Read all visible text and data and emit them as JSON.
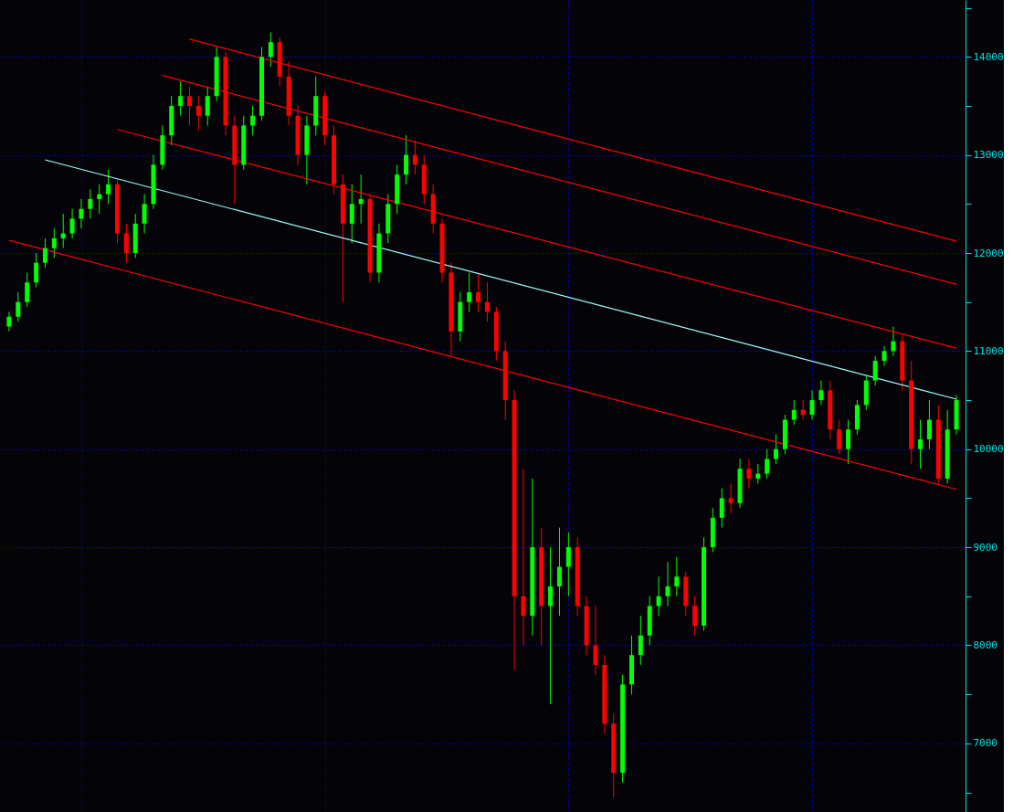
{
  "chart_data": {
    "type": "candlestick",
    "categories": [
      null,
      null,
      null,
      null,
      null,
      null,
      null,
      null,
      null,
      null,
      null,
      null,
      null,
      null,
      null,
      null,
      null,
      null,
      null,
      null,
      null,
      null,
      null,
      null,
      null,
      null,
      null,
      null,
      null,
      null,
      null,
      null,
      null,
      null,
      null,
      null,
      null,
      null,
      null,
      null,
      null,
      null,
      null,
      null,
      null,
      null,
      null,
      null,
      null,
      null,
      null,
      null,
      null,
      null,
      null,
      null,
      null,
      null,
      null,
      null,
      null,
      null,
      null,
      null,
      null,
      null,
      null,
      null,
      null,
      null,
      null,
      null,
      null,
      null,
      null,
      null,
      null,
      null,
      null,
      null,
      null,
      null,
      null,
      null,
      null,
      null,
      null,
      null,
      null,
      null,
      null,
      null,
      null,
      null,
      null,
      null,
      null,
      null,
      null,
      null,
      null,
      null,
      null,
      null,
      null,
      null
    ],
    "ohlc": [
      [
        11250,
        11400,
        11200,
        11350
      ],
      [
        11350,
        11600,
        11300,
        11500
      ],
      [
        11500,
        11800,
        11450,
        11700
      ],
      [
        11700,
        12000,
        11650,
        11900
      ],
      [
        11900,
        12150,
        11850,
        12050
      ],
      [
        12050,
        12250,
        11950,
        12150
      ],
      [
        12150,
        12400,
        12050,
        12200
      ],
      [
        12200,
        12450,
        12150,
        12350
      ],
      [
        12350,
        12550,
        12250,
        12450
      ],
      [
        12450,
        12650,
        12350,
        12550
      ],
      [
        12550,
        12700,
        12400,
        12600
      ],
      [
        12600,
        12850,
        12500,
        12700
      ],
      [
        12700,
        12750,
        12100,
        12200
      ],
      [
        12200,
        12300,
        11900,
        12000
      ],
      [
        12000,
        12400,
        11950,
        12300
      ],
      [
        12300,
        12600,
        12200,
        12500
      ],
      [
        12500,
        13000,
        12450,
        12900
      ],
      [
        12900,
        13300,
        12850,
        13200
      ],
      [
        13200,
        13600,
        13100,
        13500
      ],
      [
        13500,
        13750,
        13400,
        13600
      ],
      [
        13600,
        13700,
        13300,
        13500
      ],
      [
        13500,
        13600,
        13250,
        13400
      ],
      [
        13400,
        13700,
        13300,
        13600
      ],
      [
        13600,
        14100,
        13550,
        14000
      ],
      [
        14000,
        14050,
        13200,
        13300
      ],
      [
        13300,
        13400,
        12500,
        12900
      ],
      [
        12900,
        13400,
        12850,
        13300
      ],
      [
        13300,
        13500,
        13200,
        13400
      ],
      [
        13400,
        14100,
        13350,
        14000
      ],
      [
        14000,
        14250,
        13900,
        14150
      ],
      [
        14150,
        14200,
        13700,
        13800
      ],
      [
        13800,
        13950,
        13300,
        13400
      ],
      [
        13400,
        13500,
        12900,
        13000
      ],
      [
        13000,
        13400,
        12700,
        13300
      ],
      [
        13300,
        13800,
        13200,
        13600
      ],
      [
        13600,
        13650,
        13100,
        13200
      ],
      [
        13200,
        13300,
        12600,
        12700
      ],
      [
        12700,
        12800,
        11500,
        12300
      ],
      [
        12300,
        12700,
        12100,
        12500
      ],
      [
        12500,
        12800,
        12300,
        12550
      ],
      [
        12550,
        12600,
        11700,
        11800
      ],
      [
        11800,
        12300,
        11700,
        12200
      ],
      [
        12200,
        12600,
        12100,
        12500
      ],
      [
        12500,
        12900,
        12400,
        12800
      ],
      [
        12800,
        13200,
        12700,
        13000
      ],
      [
        13000,
        13150,
        12800,
        12900
      ],
      [
        12900,
        13000,
        12500,
        12600
      ],
      [
        12600,
        12700,
        12200,
        12300
      ],
      [
        12300,
        12350,
        11700,
        11800
      ],
      [
        11800,
        11900,
        10950,
        11200
      ],
      [
        11200,
        11600,
        11100,
        11500
      ],
      [
        11500,
        11800,
        11400,
        11600
      ],
      [
        11600,
        11800,
        11400,
        11500
      ],
      [
        11500,
        11700,
        11300,
        11400
      ],
      [
        11400,
        11450,
        10900,
        11000
      ],
      [
        11000,
        11100,
        10300,
        10500
      ],
      [
        10500,
        10600,
        7750,
        8500
      ],
      [
        8500,
        9800,
        8000,
        8300
      ],
      [
        8300,
        9700,
        8100,
        9000
      ],
      [
        9000,
        9200,
        8000,
        8400
      ],
      [
        8400,
        9000,
        7400,
        8600
      ],
      [
        8600,
        9200,
        8300,
        8800
      ],
      [
        8800,
        9150,
        8500,
        9000
      ],
      [
        9000,
        9100,
        8300,
        8400
      ],
      [
        8400,
        8500,
        7900,
        8000
      ],
      [
        8000,
        8400,
        7700,
        7800
      ],
      [
        7800,
        7900,
        7100,
        7200
      ],
      [
        7200,
        7300,
        6450,
        6700
      ],
      [
        6700,
        7700,
        6600,
        7600
      ],
      [
        7600,
        8100,
        7500,
        7900
      ],
      [
        7900,
        8300,
        7800,
        8100
      ],
      [
        8100,
        8500,
        8000,
        8400
      ],
      [
        8400,
        8700,
        8300,
        8500
      ],
      [
        8500,
        8850,
        8400,
        8600
      ],
      [
        8600,
        8900,
        8500,
        8700
      ],
      [
        8700,
        8750,
        8300,
        8400
      ],
      [
        8400,
        8500,
        8100,
        8200
      ],
      [
        8200,
        9100,
        8150,
        9000
      ],
      [
        9000,
        9400,
        8950,
        9300
      ],
      [
        9300,
        9600,
        9200,
        9500
      ],
      [
        9500,
        9650,
        9350,
        9450
      ],
      [
        9450,
        9900,
        9400,
        9800
      ],
      [
        9800,
        9900,
        9600,
        9700
      ],
      [
        9700,
        9850,
        9650,
        9750
      ],
      [
        9750,
        10000,
        9700,
        9900
      ],
      [
        9900,
        10150,
        9850,
        10000
      ],
      [
        10000,
        10350,
        9950,
        10300
      ],
      [
        10300,
        10500,
        10250,
        10400
      ],
      [
        10400,
        10500,
        10300,
        10350
      ],
      [
        10350,
        10600,
        10300,
        10500
      ],
      [
        10500,
        10700,
        10450,
        10600
      ],
      [
        10600,
        10700,
        10100,
        10200
      ],
      [
        10200,
        10300,
        9950,
        10000
      ],
      [
        10000,
        10300,
        9850,
        10200
      ],
      [
        10200,
        10500,
        10150,
        10450
      ],
      [
        10450,
        10750,
        10400,
        10700
      ],
      [
        10700,
        10950,
        10650,
        10900
      ],
      [
        10900,
        11050,
        10850,
        11000
      ],
      [
        11000,
        11250,
        10950,
        11100
      ],
      [
        11100,
        11150,
        10600,
        10700
      ],
      [
        10700,
        10900,
        9850,
        10000
      ],
      [
        10000,
        10300,
        9800,
        10100
      ],
      [
        10100,
        10500,
        10000,
        10300
      ],
      [
        10300,
        10450,
        9650,
        9700
      ],
      [
        9700,
        10400,
        9650,
        10200
      ],
      [
        10200,
        10550,
        10150,
        10500
      ]
    ],
    "colors": [
      "#00ff00",
      "#00ff00",
      "#00ff00",
      "#00ff00",
      "#00ff00",
      "#00ff00",
      "#00ff00",
      "#00ff00",
      "#00ff00",
      "#00ff00",
      "#00ff00",
      "#00ff00",
      "#ff0000",
      "#ff0000",
      "#00ff00",
      "#00ff00",
      "#00ff00",
      "#00ff00",
      "#00ff00",
      "#00ff00",
      "#ff0000",
      "#ff0000",
      "#00ff00",
      "#00ff00",
      "#ff0000",
      "#ff0000",
      "#00ff00",
      "#00ff00",
      "#00ff00",
      "#00ff00",
      "#ff0000",
      "#ff0000",
      "#ff0000",
      "#00ff00",
      "#00ff00",
      "#ff0000",
      "#ff0000",
      "#ff0000",
      "#00ff00",
      "#00ff00",
      "#ff0000",
      "#00ff00",
      "#00ff00",
      "#00ff00",
      "#00ff00",
      "#ff0000",
      "#ff0000",
      "#ff0000",
      "#ff0000",
      "#ff0000",
      "#00ff00",
      "#00ff00",
      "#ff0000",
      "#ff0000",
      "#ff0000",
      "#ff0000",
      "#ff0000",
      "#ff0000",
      "#00ff00",
      "#ff0000",
      "#00ff00",
      "#00ff00",
      "#00ff00",
      "#ff0000",
      "#ff0000",
      "#ff0000",
      "#ff0000",
      "#ff0000",
      "#00ff00",
      "#00ff00",
      "#00ff00",
      "#00ff00",
      "#00ff00",
      "#00ff00",
      "#00ff00",
      "#ff0000",
      "#ff0000",
      "#00ff00",
      "#00ff00",
      "#00ff00",
      "#ff0000",
      "#00ff00",
      "#ff0000",
      "#00ff00",
      "#00ff00",
      "#00ff00",
      "#00ff00",
      "#00ff00",
      "#ff0000",
      "#00ff00",
      "#00ff00",
      "#ff0000",
      "#ff0000",
      "#00ff00",
      "#00ff00",
      "#00ff00",
      "#00ff00",
      "#00ff00",
      "#00ff00",
      "#ff0000",
      "#ff0000",
      "#00ff00",
      "#00ff00",
      "#ff0000",
      "#00ff00",
      "#00ff00"
    ],
    "series": [
      {
        "type": "line",
        "color": "#a0ffff",
        "values": [
          null,
          null,
          null,
          null,
          12950,
          null,
          null,
          null,
          null,
          null,
          null,
          null,
          null,
          null,
          null,
          null,
          null,
          null,
          null,
          null,
          null,
          null,
          null,
          null,
          null,
          null,
          null,
          null,
          null,
          null,
          null,
          null,
          null,
          null,
          null,
          null,
          null,
          null,
          null,
          null,
          null,
          null,
          null,
          null,
          null,
          null,
          null,
          null,
          null,
          null,
          null,
          null,
          null,
          null,
          null,
          null,
          null,
          null,
          null,
          null,
          null,
          null,
          null,
          null,
          null,
          null,
          null,
          null,
          null,
          null,
          null,
          null,
          null,
          null,
          null,
          null,
          null,
          null,
          null,
          null,
          null,
          null,
          null,
          null,
          null,
          null,
          null,
          null,
          null,
          null,
          null,
          null,
          null,
          null,
          null,
          null,
          null,
          null,
          null,
          null,
          null,
          null,
          null,
          null,
          null,
          10510
        ]
      },
      {
        "type": "line",
        "color": "#ff0000",
        "values": [
          12130,
          null,
          null,
          null,
          null,
          null,
          null,
          null,
          null,
          null,
          null,
          null,
          null,
          null,
          null,
          null,
          null,
          null,
          null,
          null,
          null,
          null,
          null,
          null,
          null,
          null,
          null,
          null,
          null,
          null,
          null,
          null,
          null,
          null,
          null,
          null,
          null,
          null,
          null,
          null,
          null,
          null,
          null,
          null,
          null,
          null,
          null,
          null,
          null,
          null,
          null,
          null,
          null,
          null,
          null,
          null,
          null,
          null,
          null,
          null,
          null,
          null,
          null,
          null,
          null,
          null,
          null,
          null,
          null,
          null,
          null,
          null,
          null,
          null,
          null,
          null,
          null,
          null,
          null,
          null,
          null,
          null,
          null,
          null,
          null,
          null,
          null,
          null,
          null,
          null,
          null,
          null,
          null,
          null,
          null,
          null,
          null,
          null,
          null,
          null,
          null,
          null,
          null,
          null,
          null,
          9590
        ]
      },
      {
        "type": "line",
        "color": "#ff0000",
        "values": [
          null,
          null,
          null,
          null,
          null,
          null,
          null,
          null,
          null,
          null,
          null,
          null,
          13260,
          null,
          null,
          null,
          null,
          null,
          null,
          null,
          null,
          null,
          null,
          null,
          null,
          null,
          null,
          null,
          null,
          null,
          null,
          null,
          null,
          null,
          null,
          null,
          null,
          null,
          null,
          null,
          null,
          null,
          null,
          null,
          null,
          null,
          null,
          null,
          null,
          null,
          null,
          null,
          null,
          null,
          null,
          null,
          null,
          null,
          null,
          null,
          null,
          null,
          null,
          null,
          null,
          null,
          null,
          null,
          null,
          null,
          null,
          null,
          null,
          null,
          null,
          null,
          null,
          null,
          null,
          null,
          null,
          null,
          null,
          null,
          null,
          null,
          null,
          null,
          null,
          null,
          null,
          null,
          null,
          null,
          null,
          null,
          null,
          null,
          null,
          null,
          null,
          null,
          null,
          null,
          null,
          11030
        ]
      },
      {
        "type": "line",
        "color": "#ff0000",
        "values": [
          null,
          null,
          null,
          null,
          null,
          null,
          null,
          null,
          null,
          null,
          null,
          null,
          null,
          null,
          null,
          null,
          null,
          13810,
          null,
          null,
          null,
          null,
          null,
          null,
          null,
          null,
          null,
          null,
          null,
          null,
          null,
          null,
          null,
          null,
          null,
          null,
          null,
          null,
          null,
          null,
          null,
          null,
          null,
          null,
          null,
          null,
          null,
          null,
          null,
          null,
          null,
          null,
          null,
          null,
          null,
          null,
          null,
          null,
          null,
          null,
          null,
          null,
          null,
          null,
          null,
          null,
          null,
          null,
          null,
          null,
          null,
          null,
          null,
          null,
          null,
          null,
          null,
          null,
          null,
          null,
          null,
          null,
          null,
          null,
          null,
          null,
          null,
          null,
          null,
          null,
          null,
          null,
          null,
          null,
          null,
          null,
          null,
          null,
          null,
          null,
          null,
          null,
          null,
          null,
          null,
          11680
        ]
      },
      {
        "type": "line",
        "color": "#ff0000",
        "values": [
          null,
          null,
          null,
          null,
          null,
          null,
          null,
          null,
          null,
          null,
          null,
          null,
          null,
          null,
          null,
          null,
          null,
          null,
          null,
          null,
          14180,
          null,
          null,
          null,
          null,
          null,
          null,
          null,
          null,
          null,
          null,
          null,
          null,
          null,
          null,
          null,
          null,
          null,
          null,
          null,
          null,
          null,
          null,
          null,
          null,
          null,
          null,
          null,
          null,
          null,
          null,
          null,
          null,
          null,
          null,
          null,
          null,
          null,
          null,
          null,
          null,
          null,
          null,
          null,
          null,
          null,
          null,
          null,
          null,
          null,
          null,
          null,
          null,
          null,
          null,
          null,
          null,
          null,
          null,
          null,
          null,
          null,
          null,
          null,
          null,
          null,
          null,
          null,
          null,
          null,
          null,
          null,
          null,
          null,
          null,
          null,
          null,
          null,
          null,
          null,
          null,
          null,
          null,
          null,
          null,
          12120
        ]
      }
    ],
    "ylim": [
      6300,
      14580
    ],
    "yticks": [
      {
        "value": 6500,
        "label": null
      },
      7000,
      {
        "value": 7500,
        "label": null
      },
      8000,
      {
        "value": 8500,
        "label": null
      },
      9000,
      {
        "value": 9500,
        "label": null
      },
      10000,
      {
        "value": 10500,
        "label": null
      },
      11000,
      {
        "value": 11500,
        "label": null
      },
      12000,
      {
        "value": 12500,
        "label": null
      },
      13000,
      {
        "value": 13500,
        "label": null
      },
      14000,
      {
        "value": 14500,
        "label": null
      }
    ],
    "grid": true,
    "tick_labels": "y",
    "line_style": "solid",
    "marker": "none"
  }
}
